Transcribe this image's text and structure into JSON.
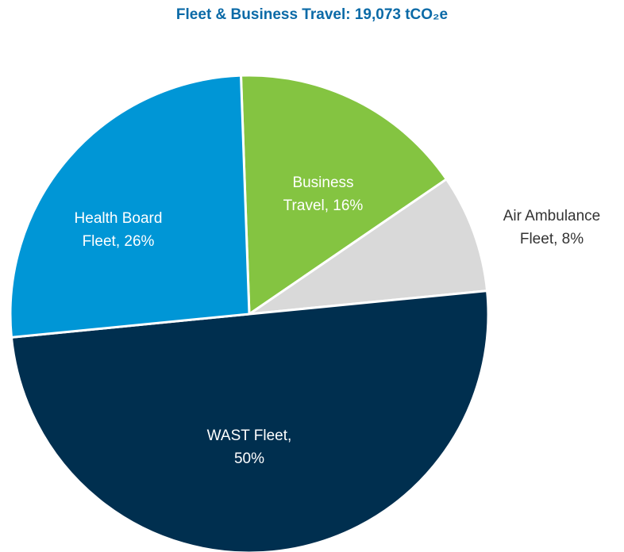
{
  "chart_data": {
    "type": "pie",
    "title": "Fleet & Business Travel: 19,073 tCO₂e",
    "values": [
      16,
      8,
      50,
      26
    ],
    "value_labels": [
      "Business Travel, 16%",
      "Air Ambulance Fleet, 8%",
      "WAST Fleet, 50%",
      "Health Board Fleet, 26%"
    ],
    "colors": [
      "#84c441",
      "#d9d9d9",
      "#002f4f",
      "#0096d6"
    ]
  }
}
